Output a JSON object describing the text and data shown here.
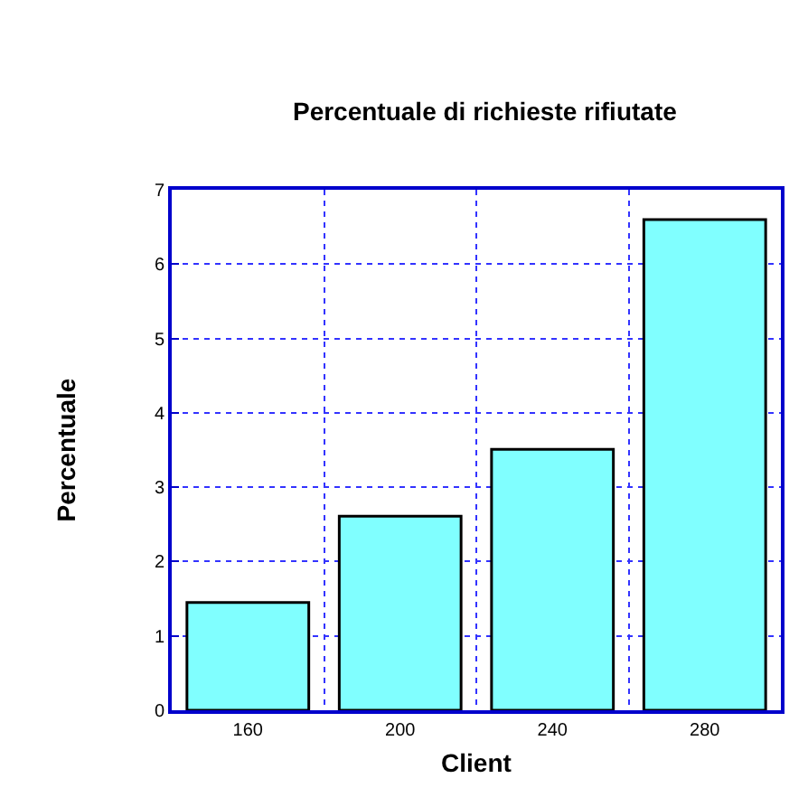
{
  "chart_data": {
    "type": "bar",
    "title": "Percentuale di richieste rifiutate",
    "xlabel": "Client",
    "ylabel": "Percentuale",
    "categories": [
      "160",
      "200",
      "240",
      "280"
    ],
    "values": [
      1.45,
      2.61,
      3.51,
      6.6
    ],
    "color": "#80ffff",
    "ylim": [
      0,
      7
    ],
    "yticks": [
      0,
      1,
      2,
      3,
      4,
      5,
      6,
      7
    ],
    "grid": true
  }
}
